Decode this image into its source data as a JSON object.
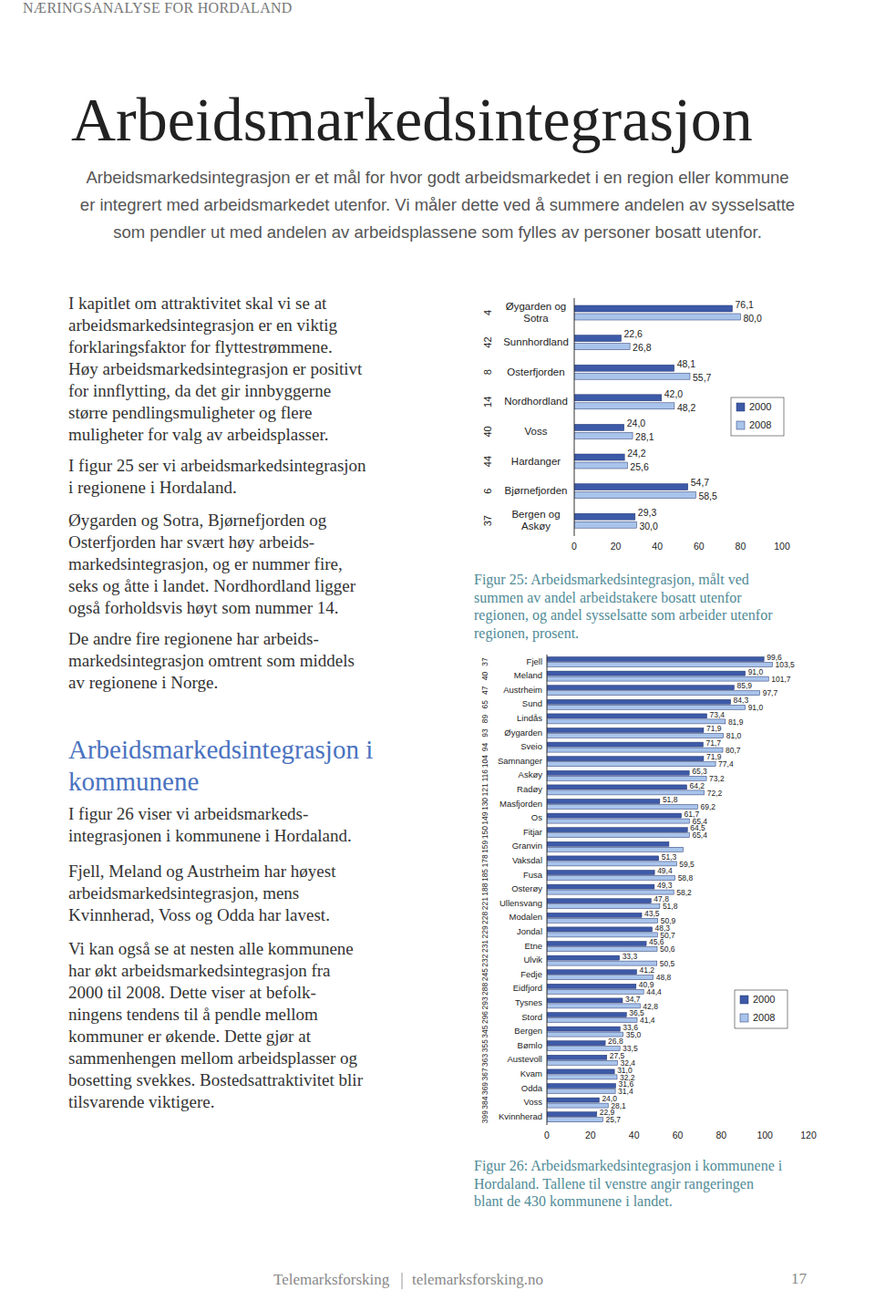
{
  "header": "NÆRINGSANALYSE FOR HORDALAND",
  "title": "Arbeidsmarkedsintegrasjon",
  "intro": [
    "Arbeidsmarkedsintegrasjon er et mål for hvor godt arbeidsmarkedet i en region eller kommune",
    "er integrert med arbeidsmarkedet utenfor. Vi måler dette ved å summere andelen av sysselsatte",
    "som pendler ut med andelen av arbeidsplassene som fylles av personer bosatt utenfor."
  ],
  "section1": [
    [
      "I kapitlet om attraktivitet skal vi se at",
      "arbeidsmarkedsintegrasjon er en viktig",
      "forklaringsfaktor for flyttestrømmene.",
      "Høy arbeidsmarkedsintegrasjon er positivt",
      "for innflytting, da det gir innbyggerne",
      "større pendlingsmuligheter og flere",
      "muligheter for valg av arbeidsplasser."
    ],
    [
      "I figur 25 ser vi arbeidsmarkedsintegrasjon",
      "i regionene i Hordaland."
    ],
    [
      "Øygarden og Sotra, Bjørnefjorden og",
      "Osterfjorden har svært høy arbeids-",
      "markedsintegrasjon, og er nummer fire,",
      "seks og åtte i landet. Nordhordland ligger",
      "også forholdsvis høyt som nummer 14."
    ],
    [
      "De andre fire regionene har arbeids-",
      "markedsintegrasjon omtrent som middels",
      "av regionene i Norge."
    ]
  ],
  "section2_heading": [
    "Arbeidsmarkedsintegrasjon i",
    "kommunene"
  ],
  "section2": [
    [
      "I figur 26 viser vi arbeidsmarkeds-",
      "integrasjonen i kommunene i Hordaland."
    ],
    [
      "Fjell, Meland og Austrheim har høyest",
      "arbeidsmarkedsintegrasjon, mens",
      "Kvinnherad, Voss og Odda har lavest."
    ],
    [
      "Vi kan også se at nesten alle kommunene",
      "har økt arbeidsmarkedsintegrasjon fra",
      "2000 til 2008. Dette viser at befolk-",
      "ningens tendens til å pendle mellom",
      "kommuner er økende. Dette gjør at",
      "sammenhengen mellom arbeidsplasser og",
      "bosetting svekkes. Bostedsattraktivitet blir",
      "tilsvarende viktigere."
    ]
  ],
  "chart_data": [
    {
      "type": "bar",
      "orientation": "horizontal",
      "categories": [
        "Øygarden og Sotra",
        "Sunnhordland",
        "Osterfjorden",
        "Nordhordland",
        "Voss",
        "Hardanger",
        "Bjørnefjorden",
        "Bergen og Askøy"
      ],
      "ranks": [
        4,
        42,
        8,
        14,
        40,
        44,
        6,
        37
      ],
      "series": [
        {
          "name": "2000",
          "color": "#3d5aa8",
          "values": [
            76.1,
            22.6,
            48.1,
            42.0,
            24.0,
            24.2,
            54.7,
            29.3
          ],
          "value_labels": [
            "76,1",
            "22,6",
            "48,1",
            "42,0",
            "24,0",
            "24,2",
            "54,7",
            "29,3"
          ]
        },
        {
          "name": "2008",
          "color": "#a9c4eb",
          "values": [
            80.0,
            26.8,
            55.7,
            48.2,
            28.1,
            25.6,
            58.5,
            30.0
          ],
          "value_labels": [
            "80,0",
            "26,8",
            "55,7",
            "48,2",
            "28,1",
            "25,6",
            "58,5",
            "30,0"
          ]
        }
      ],
      "xlim": [
        0,
        100
      ],
      "xticks": [
        0,
        20,
        40,
        60,
        80,
        100
      ],
      "data_labels": true,
      "grid": false,
      "legend": "right",
      "caption": [
        "Figur 25: Arbeidsmarkedsintegrasjon, målt ved",
        "summen av andel arbeidstakere bosatt utenfor",
        "regionen, og andel sysselsatte som arbeider utenfor",
        "regionen, prosent."
      ]
    },
    {
      "type": "bar",
      "orientation": "horizontal",
      "categories": [
        "Fjell",
        "Meland",
        "Austrheim",
        "Sund",
        "Lindås",
        "Øygarden",
        "Sveio",
        "Samnanger",
        "Askøy",
        "Radøy",
        "Masfjorden",
        "Os",
        "Fitjar",
        "Granvin",
        "Vaksdal",
        "Fusa",
        "Osterøy",
        "Ullensvang",
        "Modalen",
        "Jondal",
        "Etne",
        "Ulvik",
        "Fedje",
        "Eidfjord",
        "Tysnes",
        "Stord",
        "Bergen",
        "Bømlo",
        "Austevoll",
        "Kvam",
        "Odda",
        "Voss",
        "Kvinnherad"
      ],
      "ranks": [
        37,
        40,
        47,
        65,
        89,
        93,
        94,
        104,
        116,
        121,
        130,
        149,
        150,
        159,
        178,
        185,
        188,
        221,
        228,
        229,
        231,
        232,
        245,
        288,
        293,
        296,
        345,
        355,
        363,
        367,
        369,
        384,
        399
      ],
      "series": [
        {
          "name": "2000",
          "color": "#3d5aa8",
          "values": [
            99.6,
            91.0,
            85.9,
            84.3,
            73.4,
            71.9,
            71.7,
            71.9,
            65.3,
            64.2,
            51.8,
            61.7,
            64.5,
            56.0,
            51.3,
            49.4,
            49.3,
            47.8,
            43.5,
            48.3,
            45.6,
            33.3,
            41.2,
            40.9,
            34.7,
            36.5,
            33.6,
            26.8,
            27.5,
            31.0,
            31.6,
            24.0,
            22.9
          ],
          "value_labels": [
            "99,6",
            "91,0",
            "85,9",
            "84,3",
            "73,4",
            "71,9",
            "71,7",
            "71,9",
            "65,3",
            "64,2",
            "51,8",
            "61,7",
            "64,5",
            null,
            "51,3",
            "49,4",
            "49,3",
            "47,8",
            "43,5",
            "48,3",
            "45,6",
            "33,3",
            "41,2",
            "40,9",
            "34,7",
            "36,5",
            "33,6",
            "26,8",
            "27,5",
            "31,0",
            "31,6",
            "24,0",
            "22,9"
          ]
        },
        {
          "name": "2008",
          "color": "#a9c4eb",
          "values": [
            103.5,
            101.7,
            97.7,
            91.0,
            81.9,
            81.0,
            80.7,
            77.4,
            73.2,
            72.2,
            69.2,
            65.4,
            65.4,
            62.5,
            59.5,
            58.8,
            58.2,
            51.8,
            50.9,
            50.7,
            50.6,
            50.5,
            48.8,
            44.4,
            42.8,
            41.4,
            35.0,
            33.5,
            32.4,
            32.2,
            31.4,
            28.1,
            25.7
          ],
          "value_labels": [
            "103,5",
            "101,7",
            "97,7",
            "91,0",
            "81,9",
            "81,0",
            "80,7",
            "77,4",
            "73,2",
            "72,2",
            "69,2",
            "65,4",
            "65,4",
            null,
            "59,5",
            "58,8",
            "58,2",
            "51,8",
            "50,9",
            "50,7",
            "50,6",
            "50,5",
            "48,8",
            "44,4",
            "42,8",
            "41,4",
            "35,0",
            "33,5",
            "32,4",
            "32,2",
            "31,4",
            "28,1",
            "25,7"
          ]
        }
      ],
      "xlim": [
        0,
        120
      ],
      "xticks": [
        0,
        20,
        40,
        60,
        80,
        100,
        120
      ],
      "data_labels": true,
      "grid": false,
      "legend": "right",
      "caption": [
        "Figur 26: Arbeidsmarkedsintegrasjon i kommunene i",
        "Hordaland. Tallene til venstre angir rangeringen",
        "blant de 430 kommunene i landet."
      ]
    }
  ],
  "footer": {
    "left": "Telemarksforsking",
    "right": "telemarksforsking.no",
    "page": "17"
  }
}
